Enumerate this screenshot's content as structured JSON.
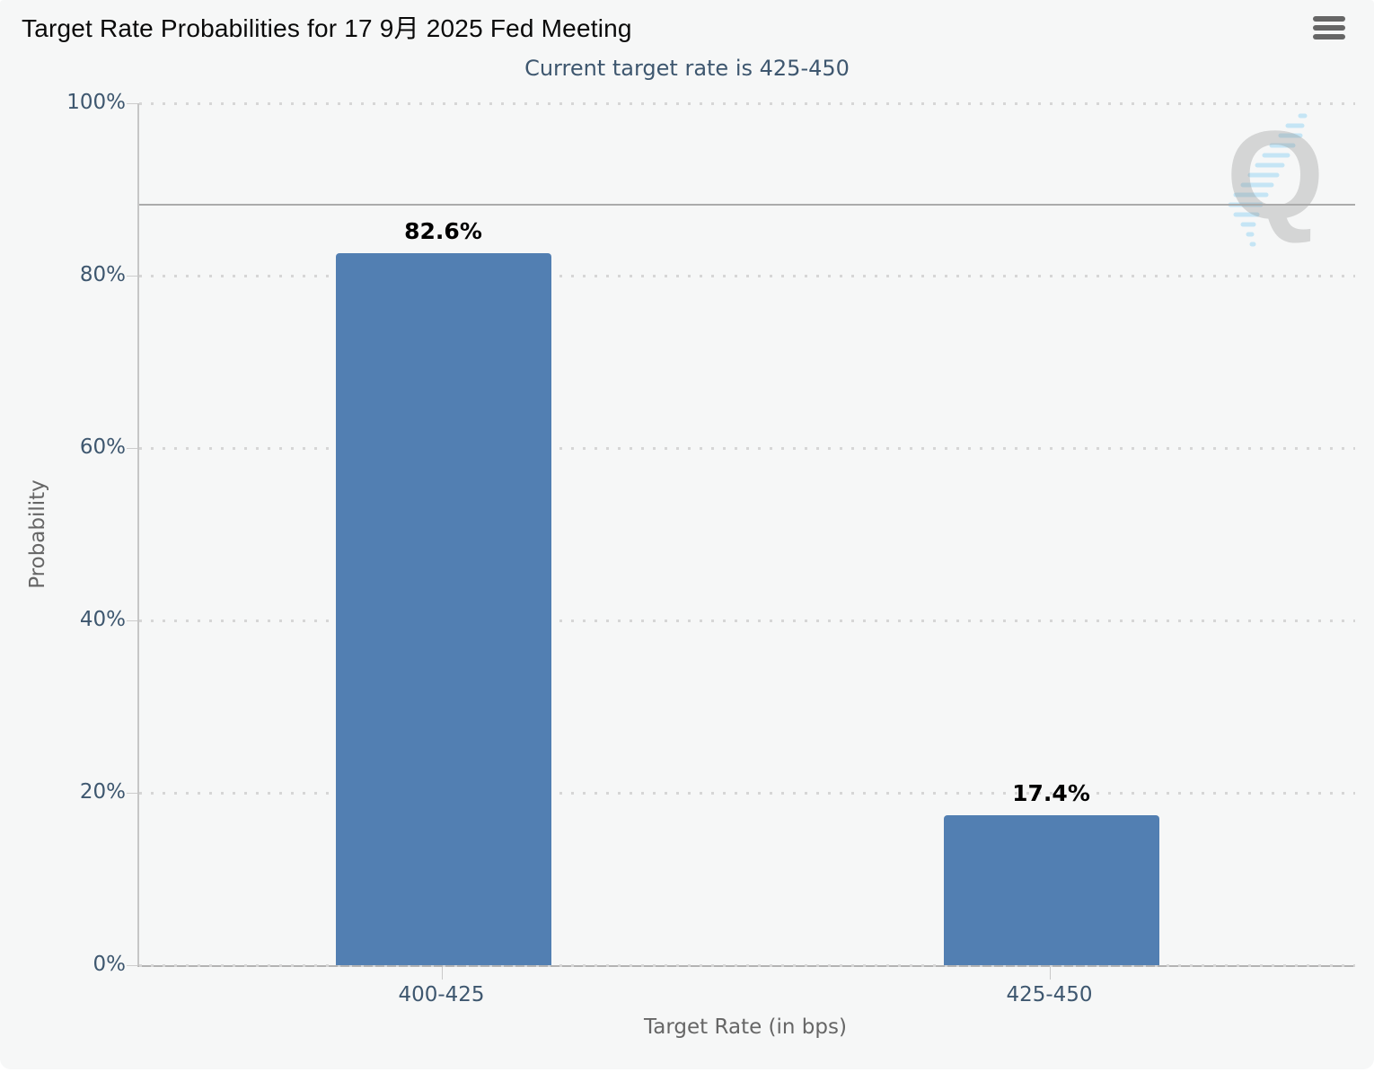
{
  "header": {
    "menu_icon": "hamburger-icon"
  },
  "colors": {
    "card_background": "#f6f7f7",
    "bar_fill": "#527fb2",
    "subtitle_text": "#3e576f",
    "tick_label_text": "#3e576f",
    "axis_title_text": "#666666",
    "gridline_dots": "#d6d6d6",
    "reference_line": "#ababab",
    "menu_icon": "#666666",
    "watermark_gray": "#8f8f8f",
    "watermark_blue": "#b5e0f5"
  },
  "chart_data": {
    "type": "bar",
    "title": "Target Rate Probabilities for 17 9月 2025 Fed Meeting",
    "subtitle": "Current target rate is 425-450",
    "categories": [
      "400-425",
      "425-450"
    ],
    "series": [
      {
        "name": "Probability",
        "values": [
          82.6,
          17.4
        ]
      }
    ],
    "data_labels": [
      "82.6%",
      "17.4%"
    ],
    "xlabel": "Target Rate (in bps)",
    "ylabel": "Probability",
    "ylim": [
      0,
      100
    ],
    "yticks": [
      {
        "value": 0,
        "label": "0%"
      },
      {
        "value": 20,
        "label": "20%"
      },
      {
        "value": 40,
        "label": "40%"
      },
      {
        "value": 60,
        "label": "60%"
      },
      {
        "value": 80,
        "label": "80%"
      },
      {
        "value": 100,
        "label": "100%"
      }
    ],
    "grid": "dotted-horizontal",
    "reference_line_value": 88.2,
    "legend": "none",
    "watermark_letter": "Q"
  }
}
